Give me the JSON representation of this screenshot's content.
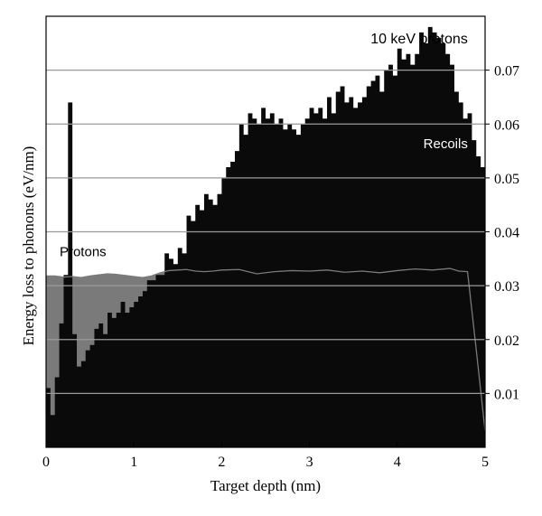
{
  "chart_data": {
    "type": "area",
    "title": "",
    "annotation": "10 keV protons",
    "xlabel": "Target depth (nm)",
    "ylabel": "Energy loss to phonons (eV/nm)",
    "xlim": [
      0,
      5
    ],
    "ylim": [
      0,
      0.08
    ],
    "x_ticks": [
      0,
      1,
      2,
      3,
      4,
      5
    ],
    "y_ticks": [
      0.01,
      0.02,
      0.03,
      0.04,
      0.05,
      0.06,
      0.07
    ],
    "y_tick_labels": [
      "0.01",
      "0.02",
      "0.03",
      "0.04",
      "0.05",
      "0.06",
      "0.07"
    ],
    "x_tick_labels": [
      "0",
      "1",
      "2",
      "3",
      "4",
      "5"
    ],
    "grid": "horizontal",
    "colors": {
      "protons": "#7a7a7a",
      "recoils": "#0a0a0a",
      "grid": "#9a9a9a",
      "axis": "#000000"
    },
    "series": [
      {
        "name": "Protons",
        "label_at": [
          0.42,
          0.0355
        ],
        "x": [
          0.0,
          0.1,
          0.2,
          0.3,
          0.4,
          0.5,
          0.6,
          0.7,
          0.8,
          0.9,
          1.0,
          1.1,
          1.2,
          1.3,
          1.4,
          1.5,
          1.6,
          1.7,
          1.8,
          1.9,
          2.0,
          2.2,
          2.4,
          2.6,
          2.8,
          3.0,
          3.2,
          3.4,
          3.6,
          3.8,
          4.0,
          4.2,
          4.4,
          4.6,
          4.7,
          4.8,
          4.9,
          5.0
        ],
        "y": [
          0.0318,
          0.0318,
          0.0316,
          0.0317,
          0.0315,
          0.0318,
          0.032,
          0.0322,
          0.0321,
          0.0319,
          0.0317,
          0.0315,
          0.0318,
          0.0324,
          0.0328,
          0.0329,
          0.033,
          0.0327,
          0.0326,
          0.0327,
          0.0329,
          0.033,
          0.0322,
          0.0326,
          0.0328,
          0.0327,
          0.0329,
          0.0325,
          0.0327,
          0.0324,
          0.0328,
          0.0331,
          0.0329,
          0.0332,
          0.0327,
          0.0326,
          0.018,
          0.003
        ]
      },
      {
        "name": "Recoils",
        "label_at": [
          4.55,
          0.0555
        ],
        "x": [
          0.0,
          0.05,
          0.1,
          0.15,
          0.2,
          0.25,
          0.3,
          0.35,
          0.4,
          0.45,
          0.5,
          0.55,
          0.6,
          0.65,
          0.7,
          0.75,
          0.8,
          0.85,
          0.9,
          0.95,
          1.0,
          1.05,
          1.1,
          1.15,
          1.2,
          1.25,
          1.3,
          1.35,
          1.4,
          1.45,
          1.5,
          1.55,
          1.6,
          1.65,
          1.7,
          1.75,
          1.8,
          1.85,
          1.9,
          1.95,
          2.0,
          2.05,
          2.1,
          2.15,
          2.2,
          2.25,
          2.3,
          2.35,
          2.4,
          2.45,
          2.5,
          2.55,
          2.6,
          2.65,
          2.7,
          2.75,
          2.8,
          2.85,
          2.9,
          2.95,
          3.0,
          3.05,
          3.1,
          3.15,
          3.2,
          3.25,
          3.3,
          3.35,
          3.4,
          3.45,
          3.5,
          3.55,
          3.6,
          3.65,
          3.7,
          3.75,
          3.8,
          3.85,
          3.9,
          3.95,
          4.0,
          4.05,
          4.1,
          4.15,
          4.2,
          4.25,
          4.3,
          4.35,
          4.4,
          4.45,
          4.5,
          4.55,
          4.6,
          4.65,
          4.7,
          4.75,
          4.8,
          4.85,
          4.9,
          4.95,
          5.0
        ],
        "y": [
          0.011,
          0.006,
          0.013,
          0.023,
          0.032,
          0.064,
          0.021,
          0.015,
          0.016,
          0.018,
          0.019,
          0.022,
          0.023,
          0.021,
          0.025,
          0.024,
          0.025,
          0.027,
          0.025,
          0.026,
          0.027,
          0.028,
          0.029,
          0.031,
          0.031,
          0.032,
          0.032,
          0.036,
          0.035,
          0.034,
          0.037,
          0.036,
          0.043,
          0.042,
          0.045,
          0.044,
          0.047,
          0.046,
          0.045,
          0.047,
          0.05,
          0.052,
          0.053,
          0.055,
          0.06,
          0.058,
          0.062,
          0.061,
          0.06,
          0.063,
          0.061,
          0.062,
          0.06,
          0.061,
          0.059,
          0.06,
          0.059,
          0.058,
          0.06,
          0.061,
          0.063,
          0.062,
          0.063,
          0.061,
          0.065,
          0.062,
          0.066,
          0.067,
          0.064,
          0.065,
          0.063,
          0.064,
          0.065,
          0.067,
          0.068,
          0.069,
          0.066,
          0.07,
          0.071,
          0.069,
          0.074,
          0.072,
          0.073,
          0.071,
          0.073,
          0.077,
          0.075,
          0.078,
          0.077,
          0.076,
          0.075,
          0.073,
          0.071,
          0.066,
          0.064,
          0.061,
          0.062,
          0.057,
          0.054,
          0.052,
          0.04
        ]
      }
    ]
  }
}
